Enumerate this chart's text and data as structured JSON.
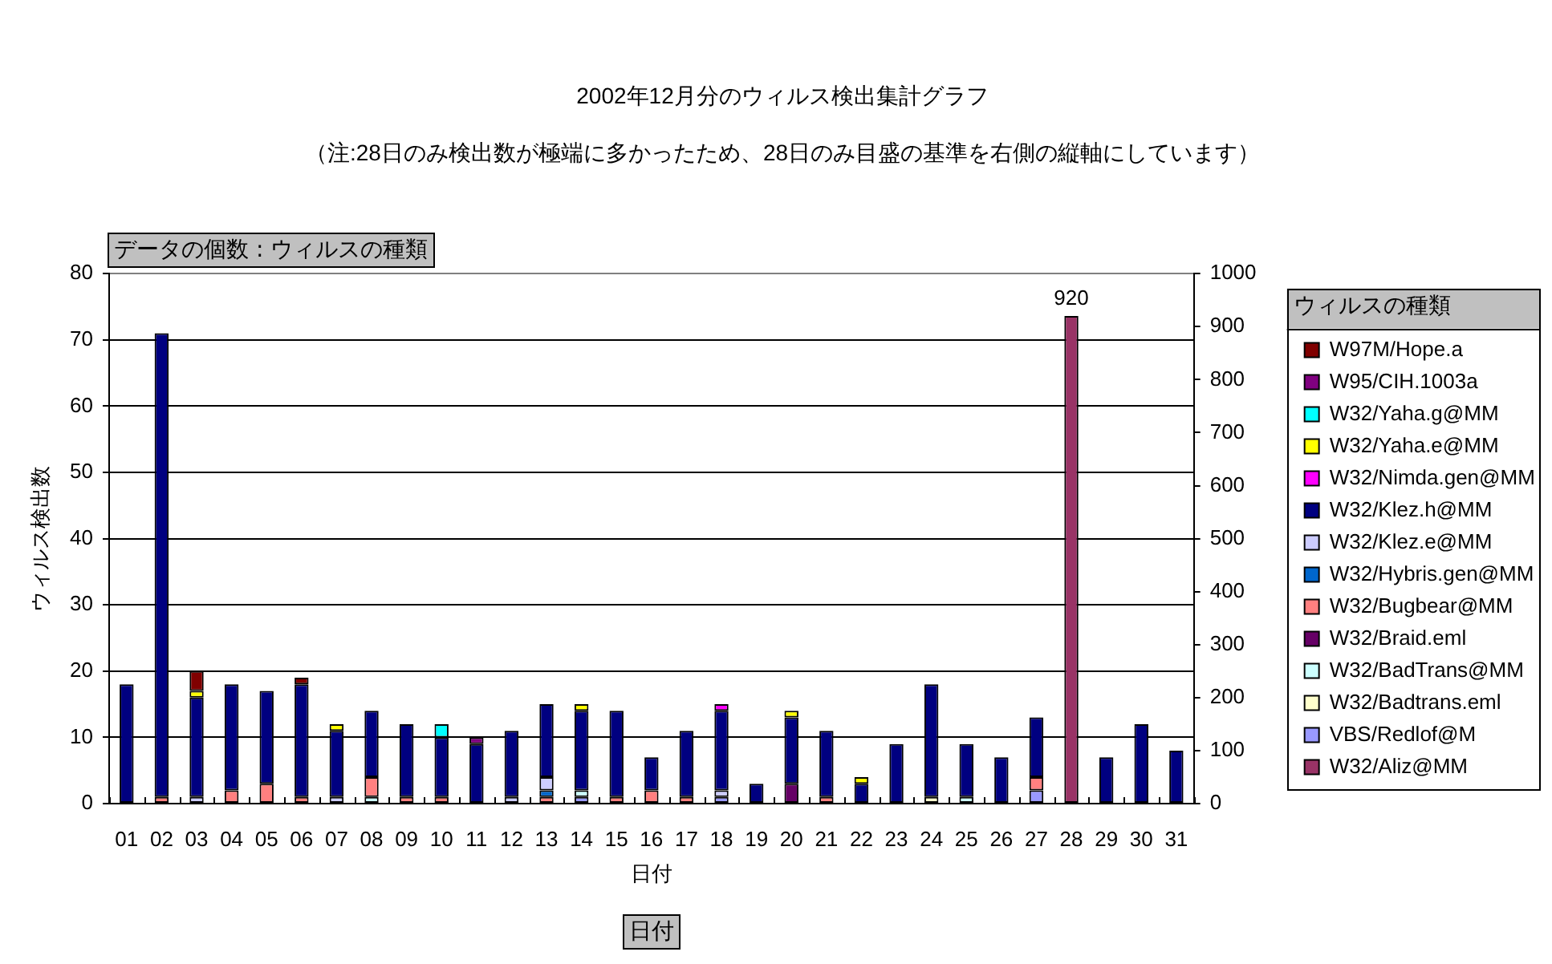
{
  "chart_data": {
    "type": "bar",
    "title": "2002年12月分のウィルス検出集計グラフ",
    "subtitle": "（注:28日のみ検出数が極端に多かったため、28日のみ目盛の基準を右側の縦軸にしています）",
    "xlabel": "日付",
    "ylabel": "ウィルス検出数",
    "legend_title": "ウィルスの種類",
    "annotations": [
      "データの個数 : ウィルスの種類",
      "日付"
    ],
    "categories": [
      "01",
      "02",
      "03",
      "04",
      "05",
      "06",
      "07",
      "08",
      "09",
      "10",
      "11",
      "12",
      "13",
      "14",
      "15",
      "16",
      "17",
      "18",
      "19",
      "20",
      "21",
      "22",
      "23",
      "24",
      "25",
      "26",
      "27",
      "28",
      "29",
      "30",
      "31"
    ],
    "stacked": true,
    "ylim": [
      0,
      80
    ],
    "yticks": [
      0,
      10,
      20,
      30,
      40,
      50,
      60,
      70,
      80
    ],
    "y2lim": [
      0,
      1000
    ],
    "y2ticks": [
      0,
      100,
      200,
      300,
      400,
      500,
      600,
      700,
      800,
      900,
      1000
    ],
    "grid": "y",
    "legend": "right",
    "series": [
      {
        "name": "W32/Aliz@MM",
        "color": "#993366",
        "axis": "y2",
        "values": [
          null,
          null,
          null,
          null,
          null,
          null,
          null,
          null,
          null,
          null,
          null,
          null,
          null,
          null,
          null,
          null,
          null,
          null,
          null,
          null,
          null,
          null,
          null,
          null,
          null,
          null,
          null,
          920,
          null,
          null,
          null
        ],
        "value_labels": [
          null,
          null,
          null,
          null,
          null,
          null,
          null,
          null,
          null,
          null,
          null,
          null,
          null,
          null,
          null,
          null,
          null,
          null,
          null,
          null,
          null,
          null,
          null,
          null,
          null,
          null,
          null,
          "920",
          null,
          null,
          null
        ]
      },
      {
        "name": "VBS/Redlof@M",
        "color": "#9999ff",
        "values": [
          null,
          null,
          null,
          null,
          null,
          null,
          null,
          null,
          null,
          null,
          null,
          null,
          null,
          1,
          null,
          null,
          null,
          1,
          null,
          null,
          null,
          null,
          null,
          null,
          null,
          null,
          2,
          null,
          null,
          null,
          null
        ]
      },
      {
        "name": "W32/Badtrans.eml",
        "color": "#ffffcc",
        "values": [
          null,
          null,
          null,
          null,
          null,
          null,
          null,
          null,
          null,
          null,
          null,
          null,
          null,
          null,
          null,
          null,
          null,
          null,
          null,
          null,
          null,
          null,
          null,
          1,
          null,
          null,
          null,
          null,
          null,
          null,
          null
        ]
      },
      {
        "name": "W32/BadTrans@MM",
        "color": "#ccffff",
        "values": [
          null,
          null,
          null,
          null,
          null,
          null,
          null,
          1,
          null,
          null,
          null,
          null,
          null,
          1,
          null,
          null,
          null,
          null,
          null,
          null,
          null,
          null,
          null,
          null,
          1,
          null,
          null,
          null,
          null,
          null,
          null
        ]
      },
      {
        "name": "W32/Braid.eml",
        "color": "#660066",
        "values": [
          null,
          null,
          null,
          null,
          null,
          null,
          null,
          null,
          null,
          null,
          null,
          null,
          null,
          null,
          null,
          null,
          null,
          null,
          null,
          3,
          null,
          null,
          null,
          null,
          null,
          null,
          null,
          null,
          null,
          null,
          null
        ]
      },
      {
        "name": "W32/Bugbear@MM",
        "color": "#ff8080",
        "values": [
          null,
          1,
          null,
          2,
          3,
          1,
          null,
          3,
          1,
          1,
          null,
          null,
          1,
          null,
          1,
          2,
          1,
          null,
          null,
          null,
          1,
          null,
          null,
          null,
          null,
          null,
          2,
          null,
          null,
          null,
          null
        ]
      },
      {
        "name": "W32/Hybris.gen@MM",
        "color": "#0066cc",
        "values": [
          null,
          null,
          null,
          null,
          null,
          null,
          null,
          null,
          null,
          null,
          null,
          null,
          1,
          null,
          null,
          null,
          null,
          null,
          null,
          null,
          null,
          null,
          null,
          null,
          null,
          null,
          null,
          null,
          null,
          null,
          null
        ]
      },
      {
        "name": "W32/Klez.e@MM",
        "color": "#ccccff",
        "values": [
          null,
          null,
          1,
          null,
          null,
          null,
          1,
          null,
          null,
          null,
          null,
          1,
          2,
          null,
          null,
          null,
          null,
          1,
          null,
          null,
          null,
          null,
          null,
          null,
          null,
          null,
          null,
          null,
          null,
          null,
          null
        ]
      },
      {
        "name": "W32/Klez.h@MM",
        "color": "#000080",
        "values": [
          18,
          70,
          15,
          16,
          14,
          17,
          10,
          10,
          11,
          9,
          9,
          10,
          11,
          12,
          13,
          5,
          10,
          12,
          3,
          10,
          10,
          3,
          9,
          17,
          8,
          7,
          9,
          null,
          7,
          12,
          8
        ]
      },
      {
        "name": "W32/Nimda.gen@MM",
        "color": "#ff00ff",
        "values": [
          null,
          null,
          null,
          null,
          null,
          null,
          null,
          null,
          null,
          null,
          null,
          null,
          null,
          null,
          null,
          null,
          null,
          1,
          null,
          null,
          null,
          null,
          null,
          null,
          null,
          null,
          null,
          null,
          null,
          null,
          null
        ]
      },
      {
        "name": "W32/Yaha.e@MM",
        "color": "#ffff00",
        "values": [
          null,
          null,
          1,
          null,
          null,
          null,
          1,
          null,
          null,
          null,
          null,
          null,
          null,
          1,
          null,
          null,
          null,
          null,
          null,
          1,
          null,
          1,
          null,
          null,
          null,
          null,
          null,
          null,
          null,
          null,
          null
        ]
      },
      {
        "name": "W32/Yaha.g@MM",
        "color": "#00ffff",
        "values": [
          null,
          null,
          null,
          null,
          null,
          null,
          null,
          null,
          null,
          2,
          null,
          null,
          null,
          null,
          null,
          null,
          null,
          null,
          null,
          null,
          null,
          null,
          null,
          null,
          null,
          null,
          null,
          null,
          null,
          null,
          null
        ]
      },
      {
        "name": "W95/CIH.1003a",
        "color": "#800080",
        "values": [
          null,
          null,
          null,
          null,
          null,
          null,
          null,
          null,
          null,
          null,
          1,
          null,
          null,
          null,
          null,
          null,
          null,
          null,
          null,
          null,
          null,
          null,
          null,
          null,
          null,
          null,
          null,
          null,
          null,
          null,
          null
        ]
      },
      {
        "name": "W97M/Hope.a",
        "color": "#800000",
        "values": [
          null,
          null,
          3,
          null,
          null,
          1,
          null,
          null,
          null,
          null,
          null,
          null,
          null,
          null,
          null,
          null,
          null,
          null,
          null,
          null,
          null,
          null,
          null,
          null,
          null,
          null,
          null,
          null,
          null,
          null,
          null
        ]
      }
    ]
  }
}
